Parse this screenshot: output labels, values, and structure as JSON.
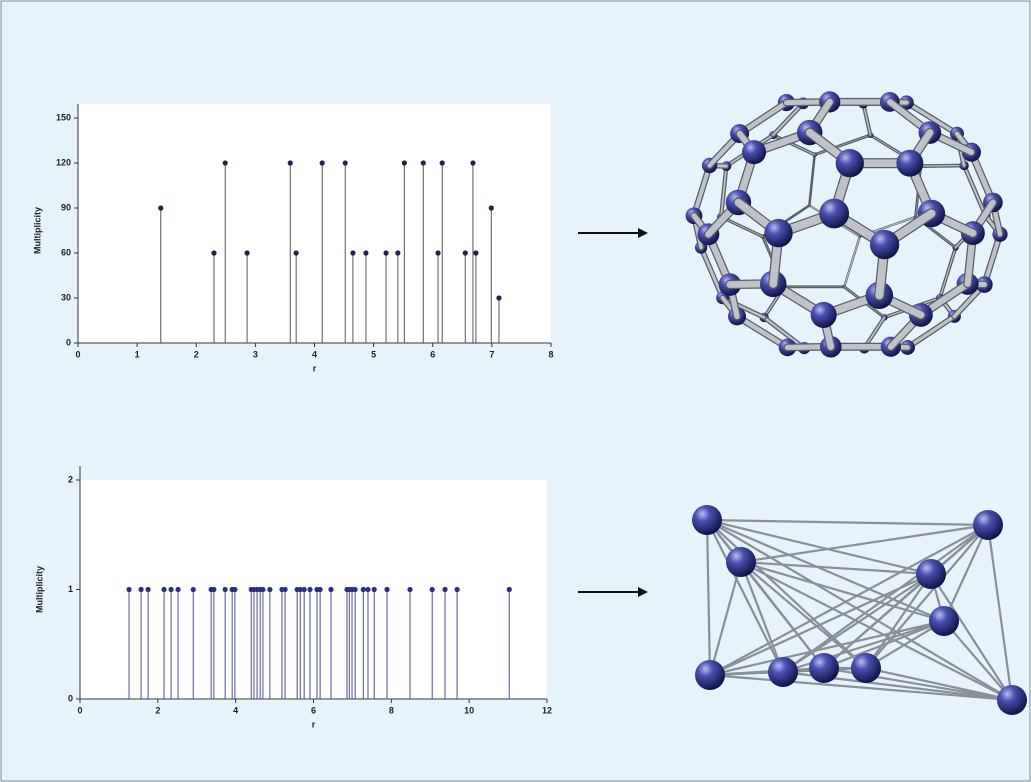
{
  "chart_data": [
    {
      "type": "stem",
      "x_label": "r",
      "y_label": "Multiplicity",
      "color": "#555555",
      "marker_color": "#222244",
      "x": [
        1.4,
        2.3,
        2.49,
        2.86,
        3.59,
        3.69,
        4.13,
        4.52,
        4.65,
        4.87,
        5.21,
        5.41,
        5.52,
        5.84,
        6.09,
        6.16,
        6.55,
        6.68,
        6.73,
        6.99,
        7.12
      ],
      "values": [
        90,
        60,
        120,
        60,
        120,
        60,
        120,
        120,
        60,
        60,
        60,
        60,
        120,
        120,
        60,
        120,
        60,
        120,
        60,
        90,
        30
      ],
      "xlim": [
        0,
        8
      ],
      "ylim": [
        0,
        150
      ],
      "xticks": [
        0,
        1,
        2,
        3,
        4,
        5,
        6,
        7,
        8
      ],
      "yticks": [
        0,
        30,
        60,
        90,
        120,
        150
      ]
    },
    {
      "type": "stem",
      "x_label": "r",
      "y_label": "Multiplicity",
      "color": "#4a4f96",
      "marker_color": "#2a2f80",
      "x": [
        1.26,
        1.57,
        1.75,
        2.16,
        2.34,
        2.52,
        2.91,
        3.37,
        3.44,
        3.73,
        3.91,
        3.98,
        4.4,
        4.47,
        4.55,
        4.63,
        4.7,
        4.88,
        5.19,
        5.27,
        5.58,
        5.66,
        5.76,
        5.91,
        6.09,
        6.17,
        6.45,
        6.86,
        6.92,
        6.99,
        7.07,
        7.28,
        7.4,
        7.56,
        7.89,
        8.48,
        9.05,
        9.38,
        9.69,
        11.03
      ],
      "values": [
        1,
        1,
        1,
        1,
        1,
        1,
        1,
        1,
        1,
        1,
        1,
        1,
        1,
        1,
        1,
        1,
        1,
        1,
        1,
        1,
        1,
        1,
        1,
        1,
        1,
        1,
        1,
        1,
        1,
        1,
        1,
        1,
        1,
        1,
        1,
        1,
        1,
        1,
        1,
        1
      ],
      "xlim": [
        0,
        12
      ],
      "ylim": [
        0,
        2
      ],
      "xticks": [
        0,
        2,
        4,
        6,
        8,
        10,
        12
      ],
      "yticks": [
        0,
        1,
        2
      ]
    }
  ]
}
